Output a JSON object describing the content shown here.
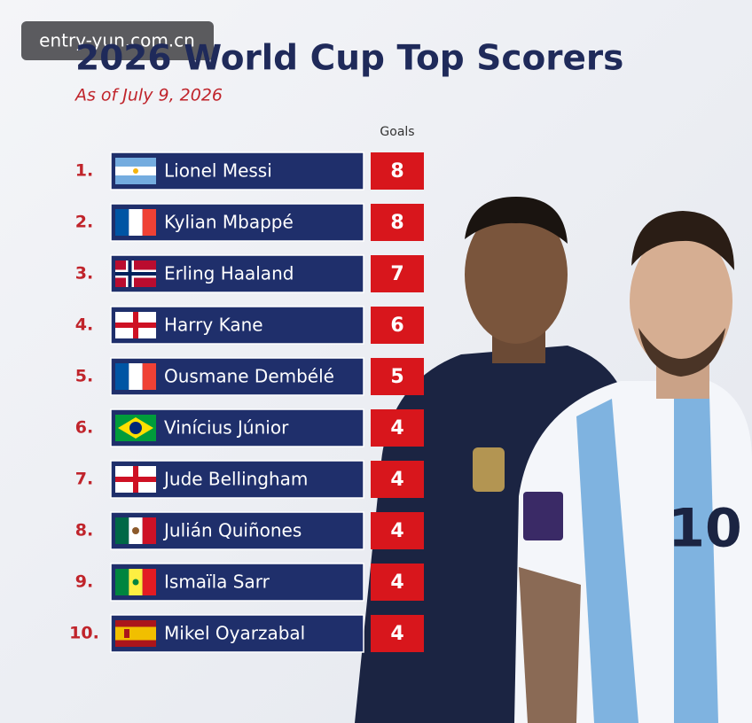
{
  "watermark": "entry-yun.com.cn",
  "header": {
    "title": "2026 World Cup Top Scorers",
    "subtitle": "As of July 9, 2026"
  },
  "table": {
    "columns": [
      "Goals"
    ],
    "rows": [
      {
        "rank": "1.",
        "name": "Lionel Messi",
        "goals": 8
      },
      {
        "rank": "2.",
        "name": "Kylian Mbappé",
        "goals": 8
      },
      {
        "rank": "3.",
        "name": "Erling Haaland",
        "goals": 7
      },
      {
        "rank": "4.",
        "name": "Harry Kane",
        "goals": 6
      },
      {
        "rank": "5.",
        "name": "Ousmane Dembélé",
        "goals": 5
      },
      {
        "rank": "6.",
        "name": "Vinícius Júnior",
        "goals": 4
      },
      {
        "rank": "7.",
        "name": "Jude Bellingham",
        "goals": 4
      },
      {
        "rank": "8.",
        "name": "Julián Quiñones",
        "goals": 4
      },
      {
        "rank": "9.",
        "name": "Ismaïla Sarr",
        "goals": 4
      },
      {
        "rank": "10.",
        "name": "Mikel Oyarzabal",
        "goals": 4
      }
    ]
  }
}
